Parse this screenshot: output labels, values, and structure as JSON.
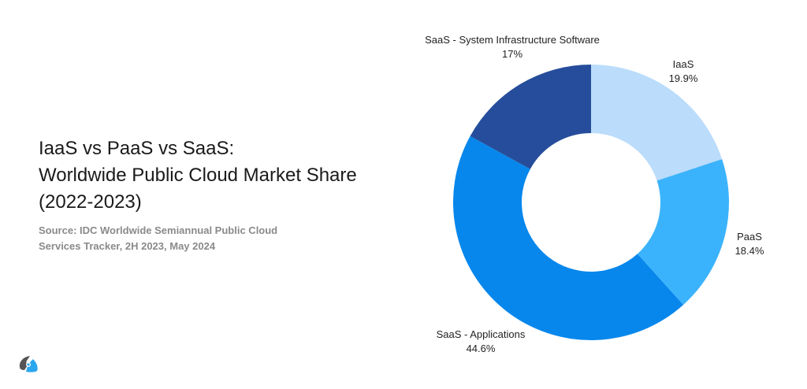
{
  "title": {
    "line1": "IaaS vs PaaS vs SaaS:",
    "line2": "Worldwide Public Cloud Market Share",
    "line3": "(2022-2023)"
  },
  "source": {
    "line1": "Source: IDC Worldwide Semiannual Public Cloud",
    "line2": "Services Tracker, 2H 2023, May 2024"
  },
  "labels": {
    "iaas": {
      "name": "IaaS",
      "value": "19.9%"
    },
    "paas": {
      "name": "PaaS",
      "value": "18.4%"
    },
    "saas_apps": {
      "name": "SaaS - Applications",
      "value": "44.6%"
    },
    "saas_sis": {
      "name": "SaaS - System Infrastructure Software",
      "value": "17%"
    }
  },
  "colors": {
    "iaas": "#bbdcfb",
    "paas": "#3bb3fc",
    "saas_apps": "#0787ec",
    "saas_sis": "#264d9b"
  },
  "chart_data": {
    "type": "pie",
    "subtype": "donut",
    "title": "IaaS vs PaaS vs SaaS: Worldwide Public Cloud Market Share (2022-2023)",
    "subtitle": "Source: IDC Worldwide Semiannual Public Cloud Services Tracker, 2H 2023, May 2024",
    "categories": [
      "IaaS",
      "PaaS",
      "SaaS - Applications",
      "SaaS - System Infrastructure Software"
    ],
    "values": [
      19.9,
      18.4,
      44.6,
      17.0
    ],
    "unit": "%",
    "colors": [
      "#bbdcfb",
      "#3bb3fc",
      "#0787ec",
      "#264d9b"
    ],
    "start_angle": "12 o'clock, clockwise",
    "legend": "none (direct labels)"
  }
}
